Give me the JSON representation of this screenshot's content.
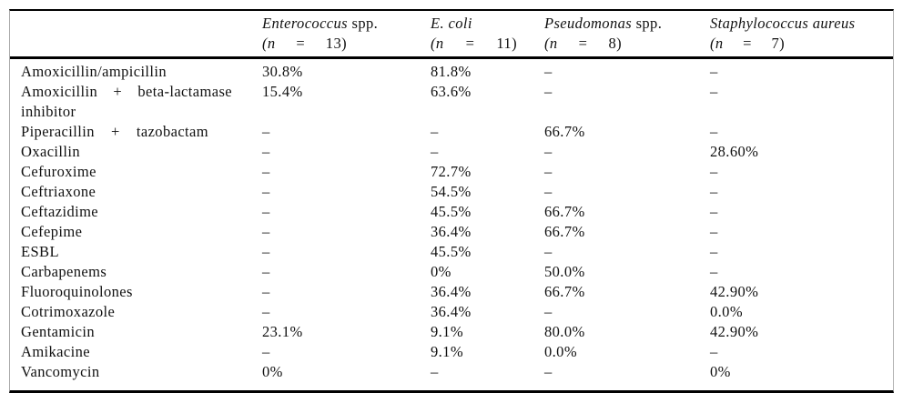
{
  "table": {
    "columns": [
      {
        "name_italic": "Enterococcus",
        "name_roman": " spp.",
        "n_open": "(n",
        "n_eq": "=",
        "n_close": "13)"
      },
      {
        "name_italic": "E. coli",
        "name_roman": "",
        "n_open": "(n",
        "n_eq": "=",
        "n_close": "11)"
      },
      {
        "name_italic": "Pseudomonas",
        "name_roman": " spp.",
        "n_open": "(n",
        "n_eq": "=",
        "n_close": "8)"
      },
      {
        "name_italic": "Staphylococcus aureus",
        "name_roman": "",
        "n_open": "(n",
        "n_eq": "=",
        "n_close": "7)"
      }
    ],
    "rows": [
      {
        "label": "Amoxicillin/ampicillin",
        "values": [
          "30.8%",
          "81.8%",
          "–",
          "–"
        ]
      },
      {
        "label": "Amoxicillin + beta-lactamase inhibitor",
        "values": [
          "15.4%",
          "63.6%",
          "–",
          "–"
        ]
      },
      {
        "label": "Piperacillin + tazobactam",
        "values": [
          "–",
          "–",
          "66.7%",
          "–"
        ]
      },
      {
        "label": "Oxacillin",
        "values": [
          "–",
          "–",
          "–",
          "28.60%"
        ]
      },
      {
        "label": "Cefuroxime",
        "values": [
          "–",
          "72.7%",
          "–",
          "–"
        ]
      },
      {
        "label": "Ceftriaxone",
        "values": [
          "–",
          "54.5%",
          "–",
          "–"
        ]
      },
      {
        "label": "Ceftazidime",
        "values": [
          "–",
          "45.5%",
          "66.7%",
          "–"
        ]
      },
      {
        "label": "Cefepime",
        "values": [
          "–",
          "36.4%",
          "66.7%",
          "–"
        ]
      },
      {
        "label": "ESBL",
        "values": [
          "–",
          "45.5%",
          "–",
          "–"
        ]
      },
      {
        "label": "Carbapenems",
        "values": [
          "–",
          "0%",
          "50.0%",
          "–"
        ]
      },
      {
        "label": "Fluoroquinolones",
        "values": [
          "–",
          "36.4%",
          "66.7%",
          "42.90%"
        ]
      },
      {
        "label": "Cotrimoxazole",
        "values": [
          "–",
          "36.4%",
          "–",
          "0.0%"
        ]
      },
      {
        "label": "Gentamicin",
        "values": [
          "23.1%",
          "9.1%",
          "80.0%",
          "42.90%"
        ]
      },
      {
        "label": "Amikacine",
        "values": [
          "–",
          "9.1%",
          "0.0%",
          "–"
        ]
      },
      {
        "label": "Vancomycin",
        "values": [
          "0%",
          "–",
          "–",
          "0%"
        ]
      }
    ]
  },
  "colors": {
    "background": "#ffffff",
    "text": "#111111",
    "rule": "#000000",
    "side_rule": "#a9a9a9"
  }
}
